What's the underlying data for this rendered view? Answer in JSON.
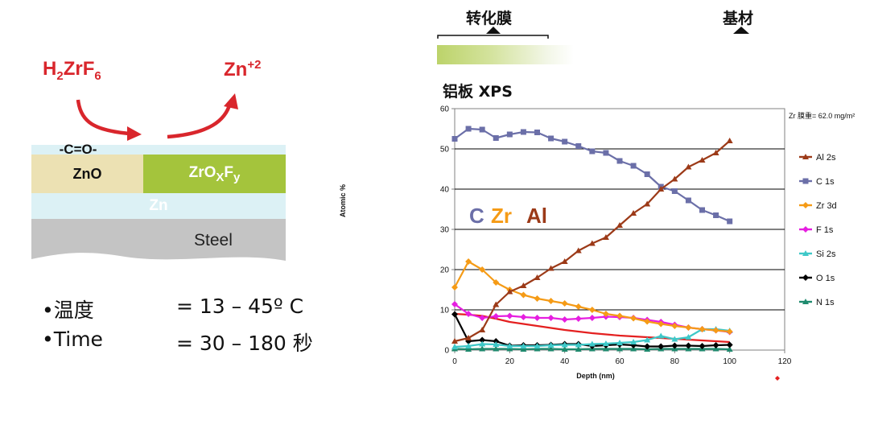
{
  "diagram": {
    "reactant": {
      "base": "H",
      "sub1": "2",
      "mid": "ZrF",
      "sub2": "6"
    },
    "product": {
      "base": "Zn",
      "sup": "+2"
    },
    "carbonyl": "-C=O-",
    "zno": "ZnO",
    "zrofy": {
      "base": "ZrO",
      "sub1": "X",
      "mid": "F",
      "sub2": "y"
    },
    "zn": "Zn",
    "steel": "Steel",
    "colors": {
      "red": "#d9262c",
      "zno": "#ece1b3",
      "zrofy": "#a4c43c",
      "zn": "#dcf1f5",
      "steel": "#c4c4c4"
    }
  },
  "conditions": [
    {
      "bullet": "•",
      "label": "温度",
      "value": "= 13 – 45º C"
    },
    {
      "bullet": "•",
      "label": "Time",
      "value": "= 30 – 180 秒"
    }
  ],
  "header": {
    "film_label": "转化膜",
    "substrate_label": "基材",
    "xps_title": "铝板 XPS"
  },
  "chart_data": {
    "type": "line",
    "title": "铝板 XPS",
    "xlabel": "Depth (nm)",
    "ylabel": "Atomic %",
    "xlim": [
      0,
      120
    ],
    "ylim": [
      0,
      60
    ],
    "xticks": [
      0,
      20,
      40,
      60,
      80,
      100,
      120
    ],
    "yticks": [
      0,
      10,
      20,
      30,
      40,
      50,
      60
    ],
    "grid": "horizontal",
    "legend_position": "right",
    "annotation": "Zr 膜重= 62.0 mg/m²",
    "overlay_labels": [
      {
        "text": "C",
        "color": "#6b6fa8"
      },
      {
        "text": "Zr",
        "color": "#f59b16"
      },
      {
        "text": "Al",
        "color": "#9c3a18"
      }
    ],
    "x": [
      0,
      5,
      10,
      15,
      20,
      25,
      30,
      35,
      40,
      45,
      50,
      55,
      60,
      65,
      70,
      75,
      80,
      85,
      90,
      95,
      100
    ],
    "series": [
      {
        "name": "Al 2s",
        "color": "#9c3a18",
        "marker": "triangle",
        "values": [
          2.2,
          3.0,
          5.0,
          11.3,
          14.5,
          16.0,
          18.0,
          20.3,
          22.0,
          24.7,
          26.5,
          28.0,
          31.0,
          34.0,
          36.3,
          40.0,
          42.5,
          45.5,
          47.2,
          49.0,
          52.0
        ]
      },
      {
        "name": "C 1s",
        "color": "#6b6fa8",
        "marker": "square",
        "values": [
          52.5,
          55.0,
          54.8,
          52.7,
          53.6,
          54.2,
          54.1,
          52.6,
          51.8,
          50.7,
          49.4,
          49.0,
          47.0,
          45.8,
          43.7,
          40.6,
          39.5,
          37.2,
          34.8,
          33.5,
          32.0
        ]
      },
      {
        "name": "Zr 3d",
        "color": "#f59b16",
        "marker": "diamond",
        "values": [
          15.6,
          22.0,
          20.0,
          16.8,
          15.0,
          13.7,
          12.8,
          12.2,
          11.6,
          10.8,
          10.0,
          9.0,
          8.5,
          7.9,
          7.1,
          6.5,
          6.0,
          5.6,
          5.2,
          4.9,
          4.6
        ]
      },
      {
        "name": "F 1s",
        "color": "#e61ee0",
        "marker": "diamond",
        "values": [
          11.4,
          9.0,
          8.0,
          8.4,
          8.5,
          8.2,
          8.0,
          8.0,
          7.6,
          7.8,
          8.0,
          8.3,
          8.2,
          8.0,
          7.5,
          7.0,
          6.3,
          5.6,
          5.2,
          4.9,
          4.5
        ]
      },
      {
        "name": "Si 2s",
        "color": "#3ec8c8",
        "marker": "triangle",
        "values": [
          0.8,
          1.0,
          1.5,
          1.4,
          1.0,
          1.0,
          1.0,
          1.2,
          1.3,
          1.3,
          1.5,
          1.6,
          1.8,
          2.0,
          2.5,
          3.5,
          2.7,
          3.2,
          5.2,
          5.2,
          4.8
        ]
      },
      {
        "name": "O 1s",
        "color": "#000000",
        "marker": "diamond",
        "values": [
          8.9,
          2.2,
          2.5,
          2.2,
          1.1,
          1.2,
          1.2,
          1.3,
          1.5,
          1.5,
          1.0,
          1.2,
          1.4,
          1.2,
          0.9,
          0.9,
          1.1,
          1.1,
          1.0,
          1.2,
          1.3
        ]
      },
      {
        "name": "N 1s",
        "color": "#1e8a6e",
        "marker": "triangle",
        "values": [
          0.3,
          0.2,
          0.3,
          0.3,
          0.3,
          0.2,
          0.3,
          0.3,
          0.2,
          0.2,
          0.3,
          0.3,
          0.3,
          0.3,
          0.2,
          0.3,
          0.3,
          0.3,
          0.3,
          0.3,
          0.2
        ]
      },
      {
        "name": "",
        "color": "#e42020",
        "marker": "none",
        "values": [
          9.0,
          8.8,
          8.5,
          7.8,
          7.0,
          6.5,
          6.0,
          5.5,
          5.0,
          4.6,
          4.2,
          3.9,
          3.6,
          3.4,
          3.2,
          3.0,
          2.8,
          2.6,
          2.4,
          2.2,
          2.0
        ]
      }
    ]
  }
}
